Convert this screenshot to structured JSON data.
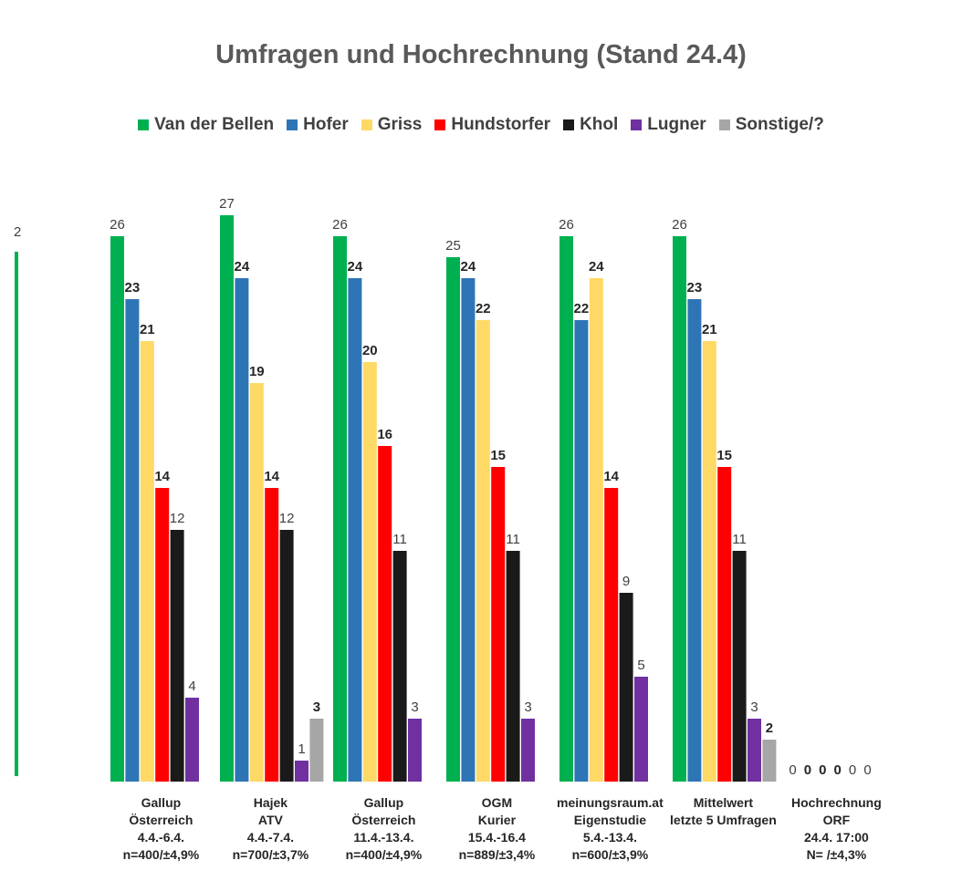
{
  "chart_data": {
    "type": "bar",
    "title": "Umfragen und Hochrechnung  (Stand 24.4)",
    "xlabel": "",
    "ylabel": "",
    "ylim": [
      0,
      27
    ],
    "grid": false,
    "legend_position": "top",
    "categories": [
      {
        "lines": [
          "Gallup",
          "Österreich",
          "4.4.-6.4.",
          "n=400/±4,9%"
        ]
      },
      {
        "lines": [
          "Hajek",
          "ATV",
          "4.4.-7.4.",
          "n=700/±3,7%"
        ]
      },
      {
        "lines": [
          "Gallup",
          "Österreich",
          "11.4.-13.4.",
          "n=400/±4,9%"
        ]
      },
      {
        "lines": [
          "OGM",
          "Kurier",
          "15.4.-16.4",
          "n=889/±3,4%"
        ]
      },
      {
        "lines": [
          "meinungsraum.at",
          "Eigenstudie",
          "5.4.-13.4.",
          "n=600/±3,9%"
        ]
      },
      {
        "lines": [
          "Mittelwert",
          "letzte 5 Umfragen",
          "",
          ""
        ]
      },
      {
        "lines": [
          "Hochrechnung",
          "ORF",
          "24.4. 17:00",
          "N=    /±4,3%"
        ]
      }
    ],
    "series": [
      {
        "name": "Van der Bellen",
        "color": "#00b050",
        "values": [
          26,
          27,
          26,
          25,
          26,
          26,
          0
        ],
        "labels": [
          "26",
          "27",
          "26",
          "25",
          "26",
          "26",
          "0"
        ],
        "bold": [
          false,
          false,
          false,
          false,
          false,
          false,
          false
        ]
      },
      {
        "name": "Hofer",
        "color": "#2e75b6",
        "values": [
          23,
          24,
          24,
          24,
          22,
          23,
          0
        ],
        "labels": [
          "23",
          "24",
          "24",
          "24",
          "22",
          "23",
          "0"
        ],
        "bold": [
          true,
          true,
          true,
          true,
          true,
          true,
          true
        ]
      },
      {
        "name": "Griss",
        "color": "#ffd966",
        "values": [
          21,
          19,
          20,
          22,
          24,
          21,
          0
        ],
        "labels": [
          "21",
          "19",
          "20",
          "22",
          "24",
          "21",
          "0"
        ],
        "bold": [
          true,
          true,
          true,
          true,
          true,
          true,
          true
        ]
      },
      {
        "name": "Hundstorfer",
        "color": "#ff0000",
        "values": [
          14,
          14,
          16,
          15,
          14,
          15,
          0
        ],
        "labels": [
          "14",
          "14",
          "16",
          "15",
          "14",
          "15",
          "0"
        ],
        "bold": [
          true,
          true,
          true,
          true,
          true,
          true,
          true
        ]
      },
      {
        "name": "Khol",
        "color": "#1a1a1a",
        "values": [
          12,
          12,
          11,
          11,
          9,
          11,
          0
        ],
        "labels": [
          "12",
          "12",
          "11",
          "11",
          "9",
          "11",
          "0"
        ],
        "bold": [
          false,
          false,
          false,
          false,
          false,
          false,
          false
        ]
      },
      {
        "name": "Lugner",
        "color": "#7030a0",
        "values": [
          4,
          1,
          3,
          3,
          5,
          3,
          0
        ],
        "labels": [
          "4",
          "1",
          "3",
          "3",
          "5",
          "3",
          "0"
        ],
        "bold": [
          false,
          false,
          false,
          false,
          false,
          false,
          false
        ]
      },
      {
        "name": "Sonstige/?",
        "color": "#a6a6a6",
        "values": [
          null,
          3,
          null,
          null,
          null,
          2,
          null
        ],
        "labels": [
          "",
          "3",
          "",
          "",
          "",
          "2",
          ""
        ],
        "bold": [
          false,
          true,
          false,
          false,
          false,
          true,
          false
        ]
      }
    ],
    "clipped_bar": {
      "value": 26,
      "label": "2"
    }
  }
}
